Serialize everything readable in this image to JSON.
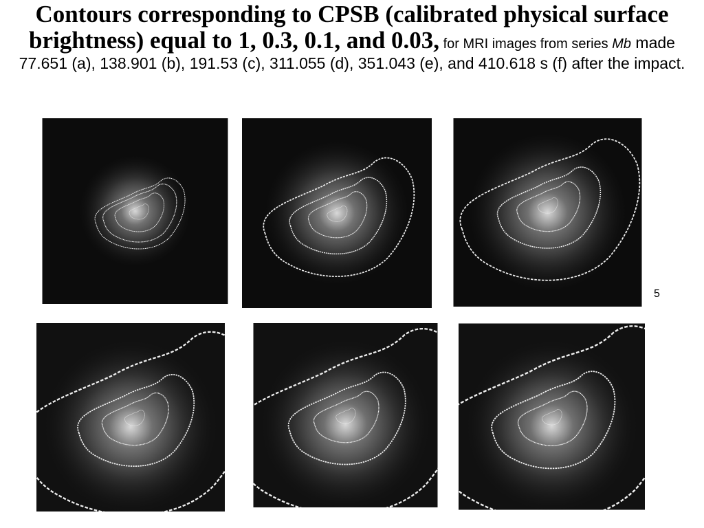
{
  "title": {
    "bold": "Contours corresponding to CPSB (calibrated physical surface brightness) equal to 1, 0.3, 0.1, and 0.03,",
    "small": " for MRI images from series ",
    "italic": "Mb",
    "rest": " made 77.651 (a), 138.901 (b), 191.53 (c), 311.055 (d), 351.043 (e), and 410.618 s (f) after the impact."
  },
  "page_number": "5"
}
